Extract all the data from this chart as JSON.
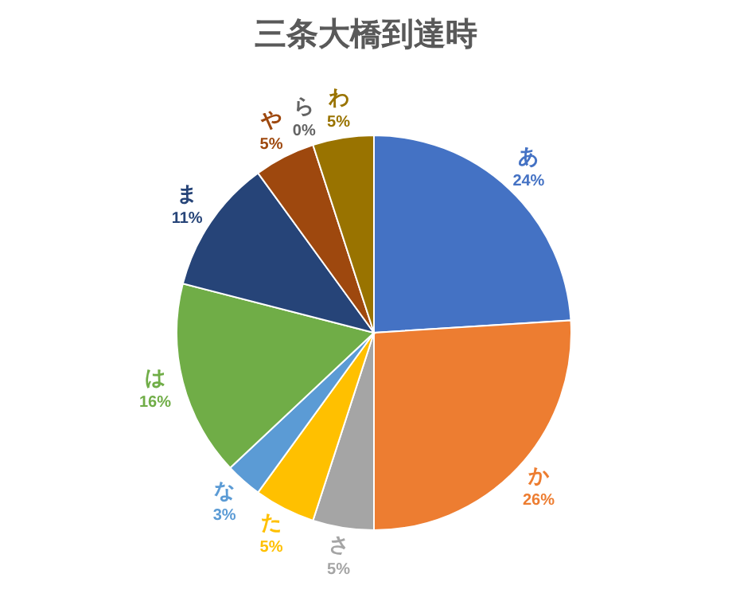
{
  "chart_data": {
    "type": "pie",
    "title": "三条大橋到達時",
    "categories": [
      "あ",
      "か",
      "さ",
      "た",
      "な",
      "は",
      "ま",
      "や",
      "ら",
      "わ"
    ],
    "values": [
      24,
      26,
      5,
      5,
      3,
      16,
      11,
      5,
      0,
      5
    ],
    "value_labels": [
      "24%",
      "26%",
      "5%",
      "5%",
      "3%",
      "16%",
      "11%",
      "5%",
      "0%",
      "5%"
    ],
    "colors": [
      "#4472c4",
      "#ed7d31",
      "#a5a5a5",
      "#ffc000",
      "#5b9bd5",
      "#70ad47",
      "#264478",
      "#9e480e",
      "#636363",
      "#997300"
    ],
    "legend": false
  }
}
